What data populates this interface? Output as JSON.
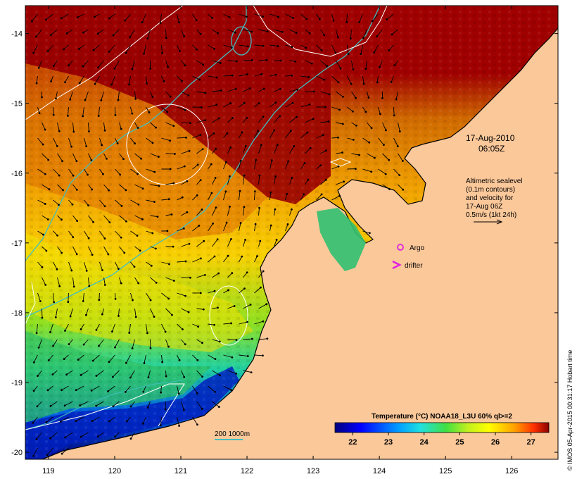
{
  "map": {
    "date": "17-Aug-2010",
    "time": "06:05Z",
    "altimetry_lines": [
      "Altimetric sealevel",
      "(0.1m contours)",
      "and velocity for",
      "17-Aug 06Z",
      "0.5m/s (1kt 24h)"
    ],
    "argo_label": "Argo",
    "drifter_label": "drifter",
    "bathy_label": "200  1000m",
    "credit": "© IMOS 05-Apr-2015 00:31:17 Hobart time",
    "colors": {
      "land": "#fbc89a",
      "frame": "#000000",
      "contour": "#ffffff",
      "bathymetry": "#40c0c0",
      "argo": "#e020e0",
      "drifter": "#e020e0"
    }
  },
  "axes": {
    "x_ticks": [
      "119",
      "120",
      "121",
      "122",
      "123",
      "124",
      "125",
      "126"
    ],
    "y_ticks": [
      "-14",
      "-15",
      "-16",
      "-17",
      "-18",
      "-19",
      "-20"
    ],
    "xlim": [
      118.65,
      126.7
    ],
    "ylim": [
      -20.1,
      -13.6
    ]
  },
  "colorbar": {
    "title": "Temperature (°C) NOAA18_L3U 60% ql>=2",
    "ticks": [
      "22",
      "23",
      "24",
      "25",
      "26",
      "27"
    ],
    "range": [
      21.5,
      27.5
    ]
  }
}
